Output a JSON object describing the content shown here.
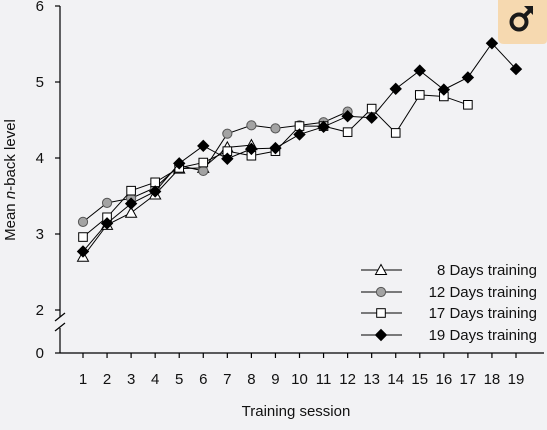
{
  "badge_icon": "male-symbol-icon",
  "badge_colors": {
    "background": "#f6d9b0",
    "stroke": "#1a1a1a"
  },
  "chart_data": {
    "type": "line",
    "xlabel": "Training session",
    "ylabel_prefix": "Mean ",
    "ylabel_italic": "n",
    "ylabel_suffix": "-back level",
    "x": [
      1,
      2,
      3,
      4,
      5,
      6,
      7,
      8,
      9,
      10,
      11,
      12,
      13,
      14,
      15,
      16,
      17,
      18,
      19
    ],
    "xlim": [
      1,
      19
    ],
    "ylim": [
      0,
      6
    ],
    "y_axis_break": {
      "between": [
        0,
        2
      ]
    },
    "yticks": [
      0,
      2,
      3,
      4,
      5,
      6
    ],
    "grid": false,
    "legend_position": "bottom-right",
    "series": [
      {
        "name": "8 Days training",
        "marker": "triangle-open",
        "x": [
          1,
          2,
          3,
          4,
          5,
          6,
          7,
          8
        ],
        "values": [
          2.7,
          3.12,
          3.28,
          3.52,
          3.86,
          3.87,
          4.14,
          4.17
        ]
      },
      {
        "name": "12 Days training",
        "marker": "circle-gray",
        "x": [
          1,
          2,
          3,
          4,
          5,
          6,
          7,
          8,
          9,
          10,
          11,
          12
        ],
        "values": [
          3.16,
          3.41,
          3.47,
          3.61,
          3.9,
          3.83,
          4.32,
          4.43,
          4.39,
          4.43,
          4.47,
          4.61
        ]
      },
      {
        "name": "17 Days training",
        "marker": "square-open",
        "x": [
          1,
          2,
          3,
          4,
          5,
          6,
          7,
          8,
          9,
          10,
          11,
          12,
          13,
          14,
          15,
          16,
          17
        ],
        "values": [
          2.96,
          3.22,
          3.57,
          3.68,
          3.87,
          3.94,
          4.09,
          4.03,
          4.09,
          4.42,
          4.42,
          4.34,
          4.65,
          4.33,
          4.83,
          4.81,
          4.7
        ]
      },
      {
        "name": "19 Days training",
        "marker": "diamond-filled",
        "x": [
          1,
          2,
          3,
          4,
          5,
          6,
          7,
          8,
          9,
          10,
          11,
          12,
          13,
          14,
          15,
          16,
          17,
          18,
          19
        ],
        "values": [
          2.77,
          3.14,
          3.4,
          3.56,
          3.93,
          4.16,
          3.99,
          4.12,
          4.13,
          4.31,
          4.41,
          4.55,
          4.53,
          4.91,
          5.15,
          4.9,
          5.06,
          5.51,
          5.17
        ]
      }
    ]
  }
}
